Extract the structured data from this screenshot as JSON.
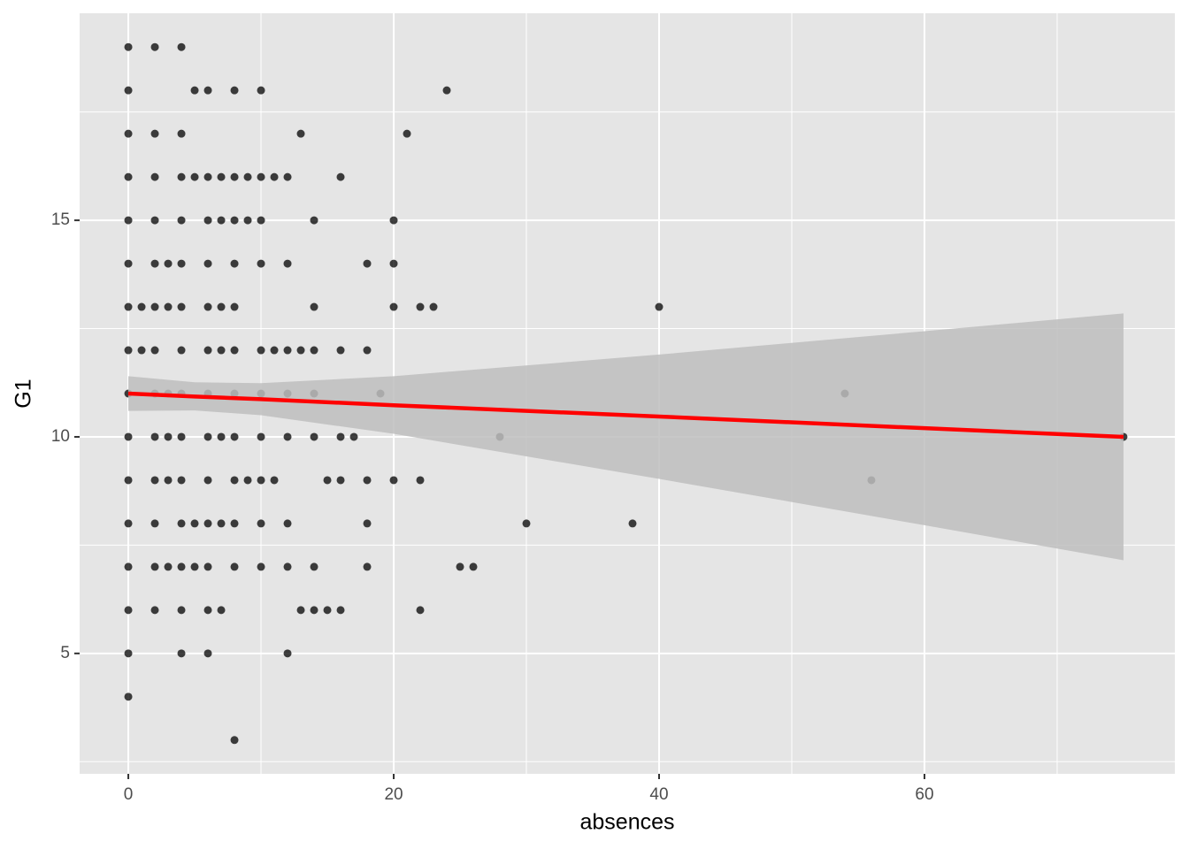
{
  "chart_data": {
    "type": "scatter",
    "x_label": "absences",
    "y_label": "G1",
    "xlim": [
      -3.67,
      78.87
    ],
    "ylim": [
      2.22,
      19.78
    ],
    "xticks": [
      0,
      20,
      40,
      60
    ],
    "yticks": [
      5,
      10,
      15
    ],
    "x_minor_grid": [
      10,
      30,
      50,
      70
    ],
    "y_minor_grid": [
      2.5,
      7.5,
      12.5,
      17.5
    ],
    "grid": true,
    "color": "#000000",
    "x": [
      0,
      2,
      4,
      0,
      5,
      6,
      8,
      10,
      24,
      0,
      2,
      4,
      13,
      21,
      0,
      2,
      4,
      5,
      6,
      7,
      8,
      9,
      10,
      11,
      12,
      16,
      0,
      2,
      4,
      6,
      7,
      8,
      9,
      10,
      14,
      20,
      0,
      2,
      3,
      4,
      6,
      8,
      10,
      12,
      18,
      20,
      0,
      1,
      2,
      3,
      4,
      6,
      7,
      8,
      14,
      20,
      22,
      23,
      40,
      0,
      1,
      2,
      4,
      6,
      7,
      8,
      10,
      11,
      12,
      13,
      14,
      16,
      18,
      0,
      2,
      3,
      4,
      6,
      8,
      10,
      12,
      14,
      19,
      54,
      0,
      2,
      3,
      4,
      6,
      7,
      8,
      10,
      12,
      14,
      16,
      17,
      28,
      75,
      0,
      2,
      3,
      4,
      6,
      8,
      9,
      10,
      11,
      15,
      16,
      18,
      20,
      22,
      56,
      0,
      2,
      4,
      5,
      6,
      7,
      8,
      10,
      12,
      18,
      30,
      38,
      0,
      2,
      3,
      4,
      5,
      6,
      8,
      10,
      12,
      14,
      18,
      25,
      26,
      0,
      2,
      4,
      6,
      7,
      13,
      14,
      15,
      16,
      22,
      0,
      4,
      6,
      12,
      0,
      8
    ],
    "values": [
      19,
      19,
      19,
      18,
      18,
      18,
      18,
      18,
      18,
      17,
      17,
      17,
      17,
      17,
      16,
      16,
      16,
      16,
      16,
      16,
      16,
      16,
      16,
      16,
      16,
      16,
      15,
      15,
      15,
      15,
      15,
      15,
      15,
      15,
      15,
      15,
      14,
      14,
      14,
      14,
      14,
      14,
      14,
      14,
      14,
      14,
      13,
      13,
      13,
      13,
      13,
      13,
      13,
      13,
      13,
      13,
      13,
      13,
      13,
      12,
      12,
      12,
      12,
      12,
      12,
      12,
      12,
      12,
      12,
      12,
      12,
      12,
      12,
      11,
      11,
      11,
      11,
      11,
      11,
      11,
      11,
      11,
      11,
      11,
      10,
      10,
      10,
      10,
      10,
      10,
      10,
      10,
      10,
      10,
      10,
      10,
      10,
      10,
      9,
      9,
      9,
      9,
      9,
      9,
      9,
      9,
      9,
      9,
      9,
      9,
      9,
      9,
      9,
      8,
      8,
      8,
      8,
      8,
      8,
      8,
      8,
      8,
      8,
      8,
      8,
      7,
      7,
      7,
      7,
      7,
      7,
      7,
      7,
      7,
      7,
      7,
      7,
      7,
      6,
      6,
      6,
      6,
      6,
      6,
      6,
      6,
      6,
      6,
      5,
      5,
      5,
      5,
      4,
      3
    ],
    "fit": {
      "color": "#ff0000",
      "band_color": "#bebebe",
      "x": [
        0,
        5,
        10,
        20,
        40,
        60,
        75
      ],
      "y": [
        11.0,
        10.93,
        10.87,
        10.73,
        10.47,
        10.2,
        10.0
      ],
      "lower": [
        10.6,
        10.61,
        10.5,
        10.07,
        9.03,
        7.96,
        7.15
      ],
      "upper": [
        11.4,
        11.26,
        11.24,
        11.4,
        11.9,
        12.44,
        12.85
      ]
    }
  }
}
